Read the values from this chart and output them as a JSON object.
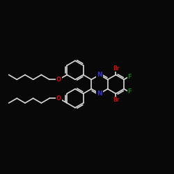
{
  "background": "#080808",
  "bond_color": "#d8d8d8",
  "bond_width": 1.2,
  "atom_colors": {
    "N": "#3333cc",
    "Br": "#bb1111",
    "F": "#117711",
    "O": "#cc1111",
    "C": "#d8d8d8"
  },
  "font_size_atom": 6.0
}
